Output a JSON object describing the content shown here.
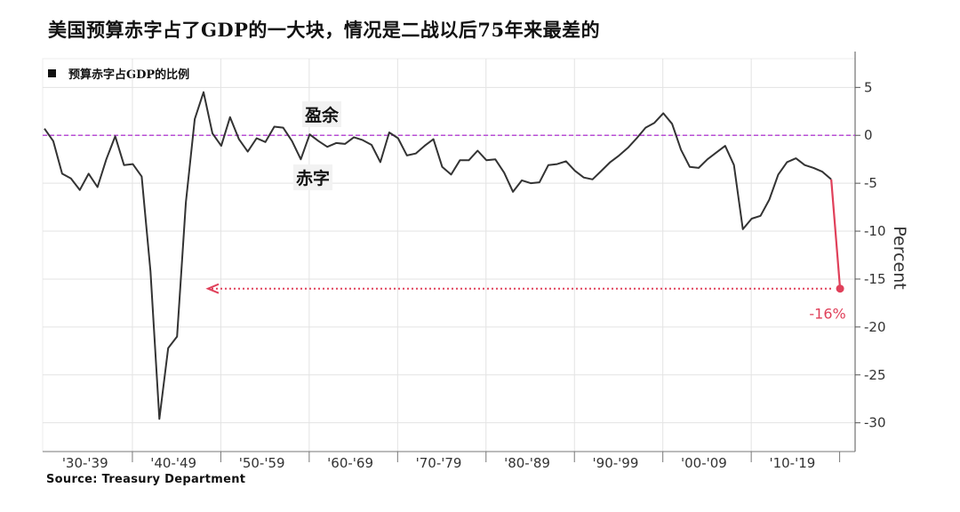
{
  "title": "美国预算赤字占了GDP的一大块，情况是二战以后75年来最差的",
  "legend": {
    "label": "预算赤字占GDP的比例"
  },
  "annotations": {
    "surplus": "盈余",
    "deficit": "赤字",
    "latest": "-16%"
  },
  "source": "Source: Treasury Department",
  "colors": {
    "line": "#333333",
    "zero_line": "#b84fd6",
    "highlight": "#e0405a",
    "grid": "#e3e3e3"
  },
  "chart_data": {
    "type": "line",
    "ylabel": "Percent",
    "ylim": [
      -33,
      8
    ],
    "yticks": [
      5,
      0,
      -5,
      -10,
      -15,
      -20,
      -25,
      -30
    ],
    "ytick_labels": [
      "5",
      "0",
      "-5",
      "-10",
      "-15",
      "-20",
      "-25",
      "-30"
    ],
    "x_categories": [
      "'30-'39",
      "'40-'49",
      "'50-'59",
      "'60-'69",
      "'70-'79",
      "'80-'89",
      "'90-'99",
      "'00-'09",
      "'10-'19"
    ],
    "xlim": [
      1929.8,
      2021.7
    ],
    "grid": true,
    "legend_position": "top-left",
    "series": [
      {
        "name": "预算赤字占GDP的比例",
        "x": [
          1930,
          1931,
          1932,
          1933,
          1934,
          1935,
          1936,
          1937,
          1938,
          1939,
          1940,
          1941,
          1942,
          1943,
          1944,
          1945,
          1946,
          1947,
          1948,
          1949,
          1950,
          1951,
          1952,
          1953,
          1954,
          1955,
          1956,
          1957,
          1958,
          1959,
          1960,
          1961,
          1962,
          1963,
          1964,
          1965,
          1966,
          1967,
          1968,
          1969,
          1970,
          1971,
          1972,
          1973,
          1974,
          1975,
          1976,
          1977,
          1978,
          1979,
          1980,
          1981,
          1982,
          1983,
          1984,
          1985,
          1986,
          1987,
          1988,
          1989,
          1990,
          1991,
          1992,
          1993,
          1994,
          1995,
          1996,
          1997,
          1998,
          1999,
          2000,
          2001,
          2002,
          2003,
          2004,
          2005,
          2006,
          2007,
          2008,
          2009,
          2010,
          2011,
          2012,
          2013,
          2014,
          2015,
          2016,
          2017,
          2018,
          2019,
          2020
        ],
        "y": [
          0.7,
          -0.6,
          -4.0,
          -4.5,
          -5.7,
          -4.0,
          -5.4,
          -2.5,
          -0.1,
          -3.1,
          -3.0,
          -4.3,
          -14.2,
          -29.6,
          -22.2,
          -21.0,
          -7.0,
          1.7,
          4.5,
          0.2,
          -1.1,
          1.9,
          -0.4,
          -1.7,
          -0.3,
          -0.7,
          0.9,
          0.8,
          -0.6,
          -2.5,
          0.1,
          -0.6,
          -1.2,
          -0.8,
          -0.9,
          -0.2,
          -0.5,
          -1.0,
          -2.8,
          0.3,
          -0.3,
          -2.1,
          -1.9,
          -1.1,
          -0.4,
          -3.3,
          -4.1,
          -2.6,
          -2.6,
          -1.6,
          -2.6,
          -2.5,
          -3.9,
          -5.9,
          -4.7,
          -5.0,
          -4.9,
          -3.1,
          -3.0,
          -2.7,
          -3.7,
          -4.4,
          -4.6,
          -3.7,
          -2.8,
          -2.1,
          -1.3,
          -0.3,
          0.8,
          1.3,
          2.3,
          1.2,
          -1.5,
          -3.3,
          -3.4,
          -2.5,
          -1.8,
          -1.1,
          -3.1,
          -9.8,
          -8.7,
          -8.4,
          -6.7,
          -4.1,
          -2.8,
          -2.4,
          -3.1,
          -3.4,
          -3.8,
          -4.6,
          -16.0
        ]
      }
    ],
    "highlight_point": {
      "x": 2020,
      "y": -16.0
    }
  }
}
